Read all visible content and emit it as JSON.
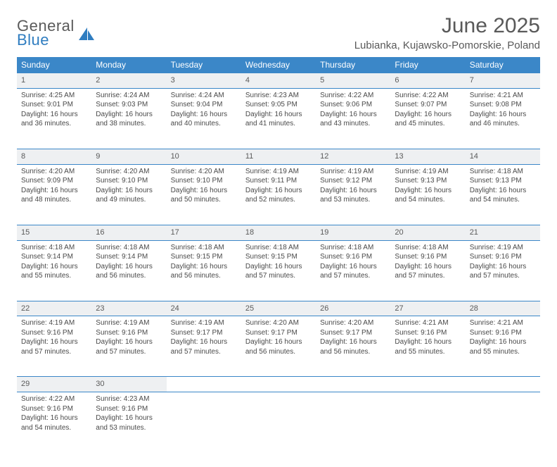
{
  "logo": {
    "line1": "General",
    "line2": "Blue",
    "sail_color": "#2f7dc0"
  },
  "title": "June 2025",
  "location": "Lubianka, Kujawsko-Pomorskie, Poland",
  "colors": {
    "header_bg": "#3b87c8",
    "header_text": "#ffffff",
    "daynum_bg": "#eef0f2",
    "row_border": "#3b87c8",
    "text": "#4a4a4a"
  },
  "day_headers": [
    "Sunday",
    "Monday",
    "Tuesday",
    "Wednesday",
    "Thursday",
    "Friday",
    "Saturday"
  ],
  "weeks": [
    [
      {
        "n": "1",
        "sr": "4:25 AM",
        "ss": "9:01 PM",
        "d1": "Daylight: 16 hours",
        "d2": "and 36 minutes."
      },
      {
        "n": "2",
        "sr": "4:24 AM",
        "ss": "9:03 PM",
        "d1": "Daylight: 16 hours",
        "d2": "and 38 minutes."
      },
      {
        "n": "3",
        "sr": "4:24 AM",
        "ss": "9:04 PM",
        "d1": "Daylight: 16 hours",
        "d2": "and 40 minutes."
      },
      {
        "n": "4",
        "sr": "4:23 AM",
        "ss": "9:05 PM",
        "d1": "Daylight: 16 hours",
        "d2": "and 41 minutes."
      },
      {
        "n": "5",
        "sr": "4:22 AM",
        "ss": "9:06 PM",
        "d1": "Daylight: 16 hours",
        "d2": "and 43 minutes."
      },
      {
        "n": "6",
        "sr": "4:22 AM",
        "ss": "9:07 PM",
        "d1": "Daylight: 16 hours",
        "d2": "and 45 minutes."
      },
      {
        "n": "7",
        "sr": "4:21 AM",
        "ss": "9:08 PM",
        "d1": "Daylight: 16 hours",
        "d2": "and 46 minutes."
      }
    ],
    [
      {
        "n": "8",
        "sr": "4:20 AM",
        "ss": "9:09 PM",
        "d1": "Daylight: 16 hours",
        "d2": "and 48 minutes."
      },
      {
        "n": "9",
        "sr": "4:20 AM",
        "ss": "9:10 PM",
        "d1": "Daylight: 16 hours",
        "d2": "and 49 minutes."
      },
      {
        "n": "10",
        "sr": "4:20 AM",
        "ss": "9:10 PM",
        "d1": "Daylight: 16 hours",
        "d2": "and 50 minutes."
      },
      {
        "n": "11",
        "sr": "4:19 AM",
        "ss": "9:11 PM",
        "d1": "Daylight: 16 hours",
        "d2": "and 52 minutes."
      },
      {
        "n": "12",
        "sr": "4:19 AM",
        "ss": "9:12 PM",
        "d1": "Daylight: 16 hours",
        "d2": "and 53 minutes."
      },
      {
        "n": "13",
        "sr": "4:19 AM",
        "ss": "9:13 PM",
        "d1": "Daylight: 16 hours",
        "d2": "and 54 minutes."
      },
      {
        "n": "14",
        "sr": "4:18 AM",
        "ss": "9:13 PM",
        "d1": "Daylight: 16 hours",
        "d2": "and 54 minutes."
      }
    ],
    [
      {
        "n": "15",
        "sr": "4:18 AM",
        "ss": "9:14 PM",
        "d1": "Daylight: 16 hours",
        "d2": "and 55 minutes."
      },
      {
        "n": "16",
        "sr": "4:18 AM",
        "ss": "9:14 PM",
        "d1": "Daylight: 16 hours",
        "d2": "and 56 minutes."
      },
      {
        "n": "17",
        "sr": "4:18 AM",
        "ss": "9:15 PM",
        "d1": "Daylight: 16 hours",
        "d2": "and 56 minutes."
      },
      {
        "n": "18",
        "sr": "4:18 AM",
        "ss": "9:15 PM",
        "d1": "Daylight: 16 hours",
        "d2": "and 57 minutes."
      },
      {
        "n": "19",
        "sr": "4:18 AM",
        "ss": "9:16 PM",
        "d1": "Daylight: 16 hours",
        "d2": "and 57 minutes."
      },
      {
        "n": "20",
        "sr": "4:18 AM",
        "ss": "9:16 PM",
        "d1": "Daylight: 16 hours",
        "d2": "and 57 minutes."
      },
      {
        "n": "21",
        "sr": "4:19 AM",
        "ss": "9:16 PM",
        "d1": "Daylight: 16 hours",
        "d2": "and 57 minutes."
      }
    ],
    [
      {
        "n": "22",
        "sr": "4:19 AM",
        "ss": "9:16 PM",
        "d1": "Daylight: 16 hours",
        "d2": "and 57 minutes."
      },
      {
        "n": "23",
        "sr": "4:19 AM",
        "ss": "9:16 PM",
        "d1": "Daylight: 16 hours",
        "d2": "and 57 minutes."
      },
      {
        "n": "24",
        "sr": "4:19 AM",
        "ss": "9:17 PM",
        "d1": "Daylight: 16 hours",
        "d2": "and 57 minutes."
      },
      {
        "n": "25",
        "sr": "4:20 AM",
        "ss": "9:17 PM",
        "d1": "Daylight: 16 hours",
        "d2": "and 56 minutes."
      },
      {
        "n": "26",
        "sr": "4:20 AM",
        "ss": "9:17 PM",
        "d1": "Daylight: 16 hours",
        "d2": "and 56 minutes."
      },
      {
        "n": "27",
        "sr": "4:21 AM",
        "ss": "9:16 PM",
        "d1": "Daylight: 16 hours",
        "d2": "and 55 minutes."
      },
      {
        "n": "28",
        "sr": "4:21 AM",
        "ss": "9:16 PM",
        "d1": "Daylight: 16 hours",
        "d2": "and 55 minutes."
      }
    ],
    [
      {
        "n": "29",
        "sr": "4:22 AM",
        "ss": "9:16 PM",
        "d1": "Daylight: 16 hours",
        "d2": "and 54 minutes."
      },
      {
        "n": "30",
        "sr": "4:23 AM",
        "ss": "9:16 PM",
        "d1": "Daylight: 16 hours",
        "d2": "and 53 minutes."
      },
      null,
      null,
      null,
      null,
      null
    ]
  ]
}
